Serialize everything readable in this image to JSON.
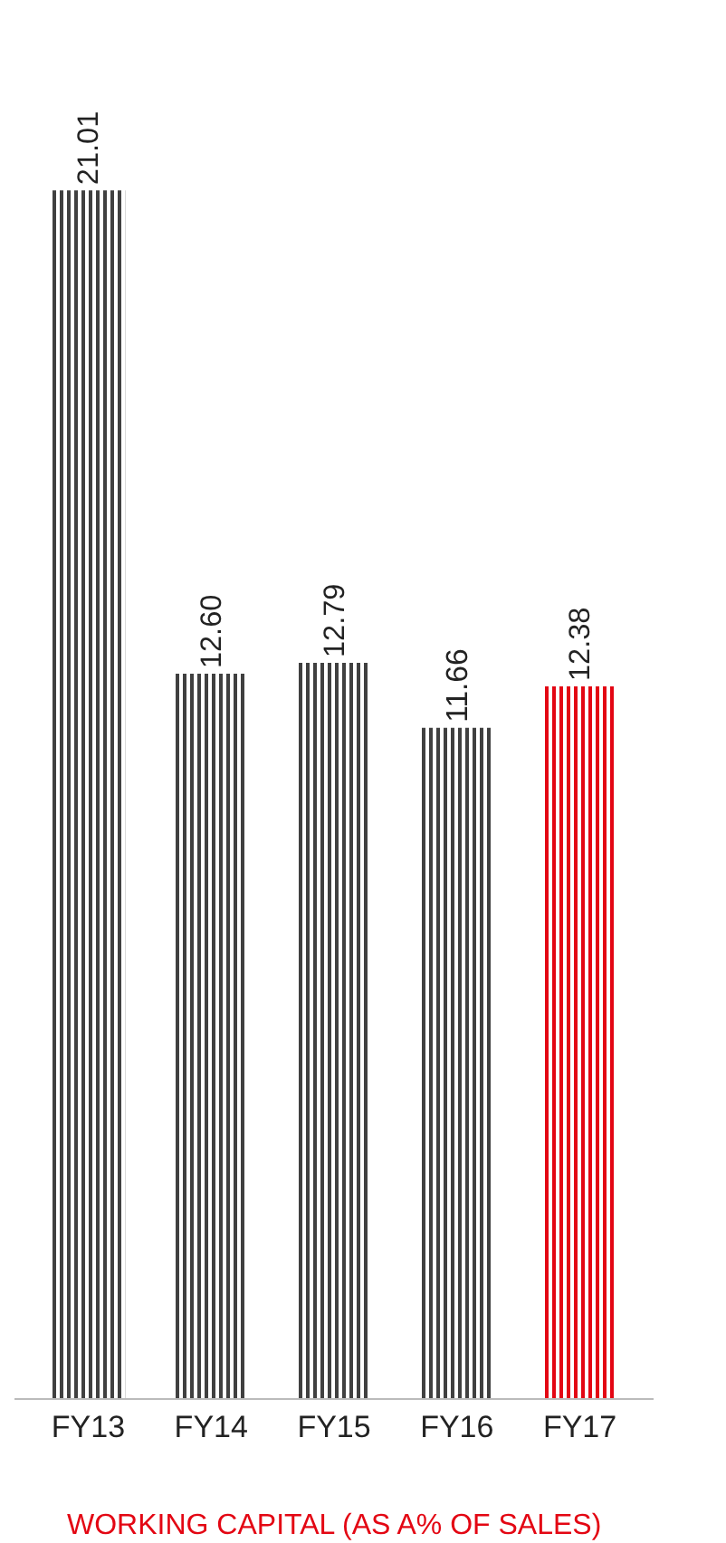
{
  "chart_data": {
    "type": "bar",
    "title": "WORKING CAPITAL (AS A% OF SALES)",
    "categories": [
      "FY13",
      "FY14",
      "FY15",
      "FY16",
      "FY17"
    ],
    "values": [
      21.01,
      12.6,
      12.79,
      11.66,
      12.38
    ],
    "value_labels": [
      "21.01",
      "12.60",
      "12.79",
      "11.66",
      "12.38"
    ],
    "colors": [
      "#404040",
      "#404040",
      "#404040",
      "#404040",
      "#e30613"
    ],
    "legend": false
  }
}
